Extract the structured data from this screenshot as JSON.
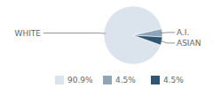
{
  "chart_data": {
    "type": "pie",
    "categories": [
      "WHITE",
      "A.I.",
      "ASIAN"
    ],
    "values": [
      90.9,
      4.5,
      4.5
    ],
    "value_labels": [
      "90.9%",
      "4.5%",
      "4.5%"
    ],
    "colors": [
      "#dbe4ed",
      "#8ea5b8",
      "#2e5672"
    ],
    "legend": "bottom"
  }
}
